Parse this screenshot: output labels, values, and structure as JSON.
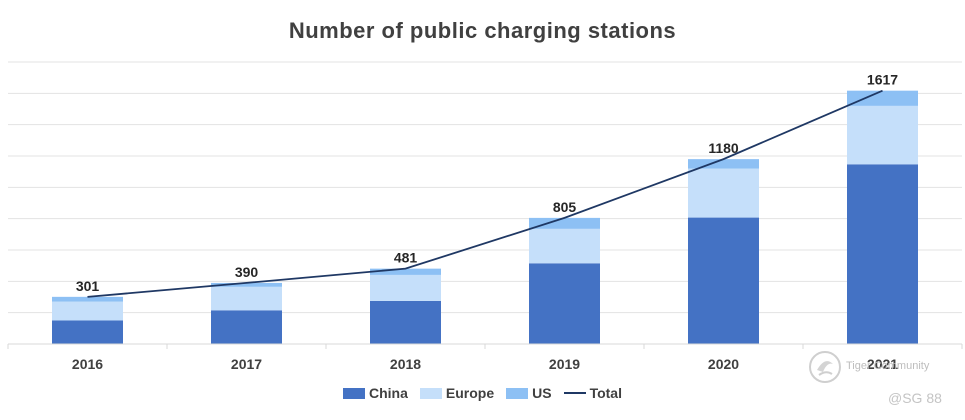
{
  "chart_data": {
    "type": "bar",
    "title": "Number of public charging stations",
    "categories": [
      "2016",
      "2017",
      "2018",
      "2019",
      "2020",
      "2021"
    ],
    "series": [
      {
        "name": "China",
        "values": [
          150,
          215,
          275,
          515,
          807,
          1147
        ],
        "color": "#4472C4"
      },
      {
        "name": "Europe",
        "values": [
          121,
          150,
          166,
          220,
          313,
          373
        ],
        "color": "#C5DFFA"
      },
      {
        "name": "US",
        "values": [
          30,
          25,
          40,
          70,
          60,
          97
        ],
        "color": "#8DC0F4"
      }
    ],
    "total": {
      "name": "Total",
      "values": [
        301,
        390,
        481,
        805,
        1180,
        1617
      ],
      "color": "#1F3864"
    },
    "ylim": [
      0,
      1800
    ],
    "grid": true,
    "xlabel": "",
    "ylabel": "",
    "legend_position": "bottom"
  },
  "watermark": {
    "brand": "Tiger Community",
    "handle": "@SG 88"
  }
}
